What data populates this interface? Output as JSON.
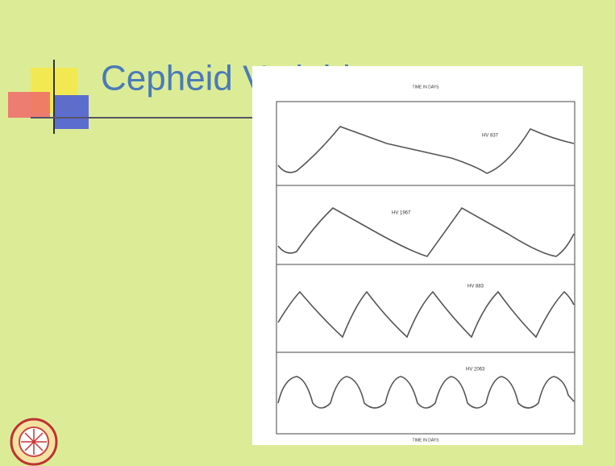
{
  "slide": {
    "title": "Cepheid Variables",
    "figure": {
      "top_axis_label": "TIME IN DAYS",
      "bottom_axis_label": "TIME IN DAYS",
      "panels": [
        "HV 837",
        "HV 1967",
        "HV 883",
        "HV 2063"
      ]
    }
  }
}
